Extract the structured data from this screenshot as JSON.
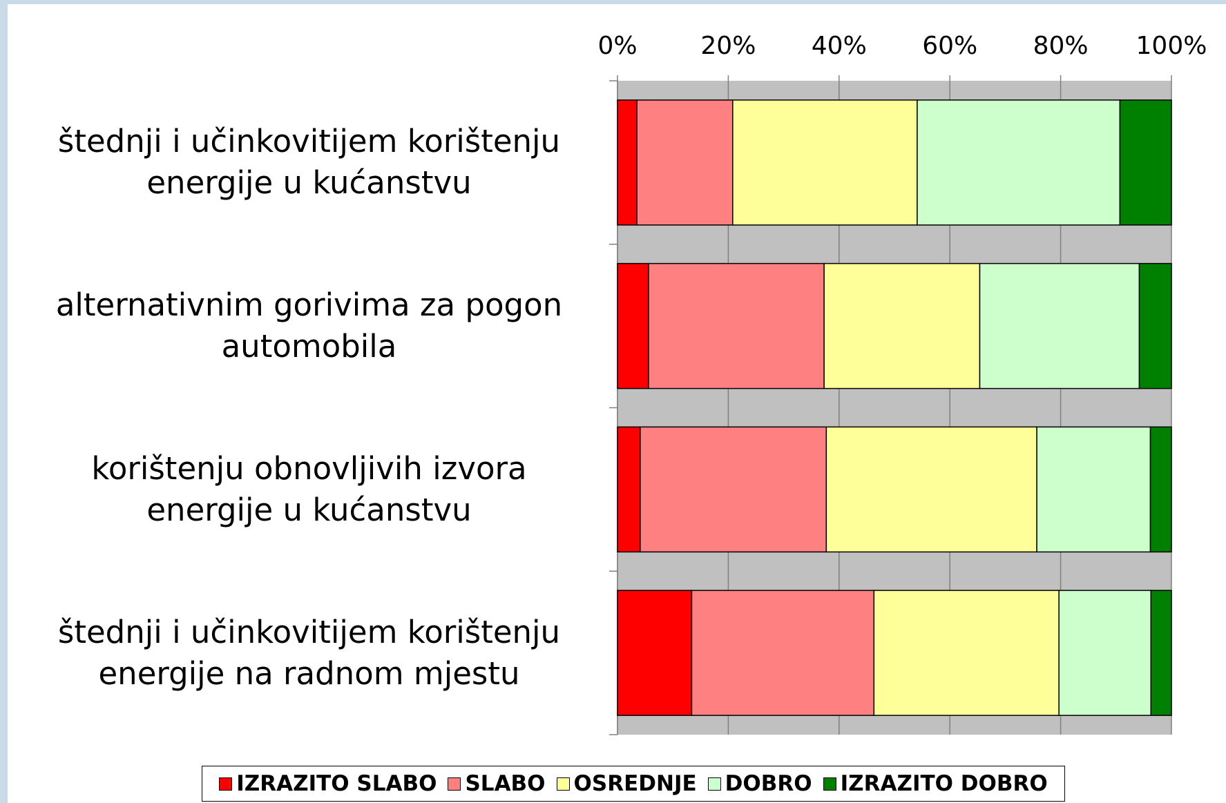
{
  "chart_data": {
    "type": "stacked_barh",
    "categories": [
      "štednji i učinkovitijem korištenju energije u kućanstvu",
      "alternativnim gorivima za pogon automobila",
      "korištenju obnovljivih izvora energije u kućanstvu",
      "štednji i učinkovitijem korištenju energije na radnom mjestu"
    ],
    "series": [
      {
        "name": "IZRAZITO SLABO",
        "color": "#ff0000",
        "values": [
          3.5,
          5.6,
          4.1,
          13.4
        ]
      },
      {
        "name": "SLABO",
        "color": "#ff8080",
        "values": [
          17.3,
          31.7,
          33.6,
          32.9
        ]
      },
      {
        "name": "OSREDNJE",
        "color": "#ffff99",
        "values": [
          33.3,
          28.1,
          38.0,
          33.4
        ]
      },
      {
        "name": "DOBRO",
        "color": "#ccffcc",
        "values": [
          36.6,
          28.8,
          20.5,
          16.6
        ]
      },
      {
        "name": "IZRAZITO DOBRO",
        "color": "#008000",
        "values": [
          9.3,
          5.8,
          3.8,
          3.7
        ]
      }
    ],
    "xlim": [
      0,
      100
    ],
    "xticks": [
      {
        "value": 0,
        "label": "0%"
      },
      {
        "value": 20,
        "label": "20%"
      },
      {
        "value": 40,
        "label": "40%"
      },
      {
        "value": 60,
        "label": "60%"
      },
      {
        "value": 80,
        "label": "80%"
      },
      {
        "value": 100,
        "label": "100%"
      }
    ],
    "grid": true,
    "legend": "bottom"
  }
}
